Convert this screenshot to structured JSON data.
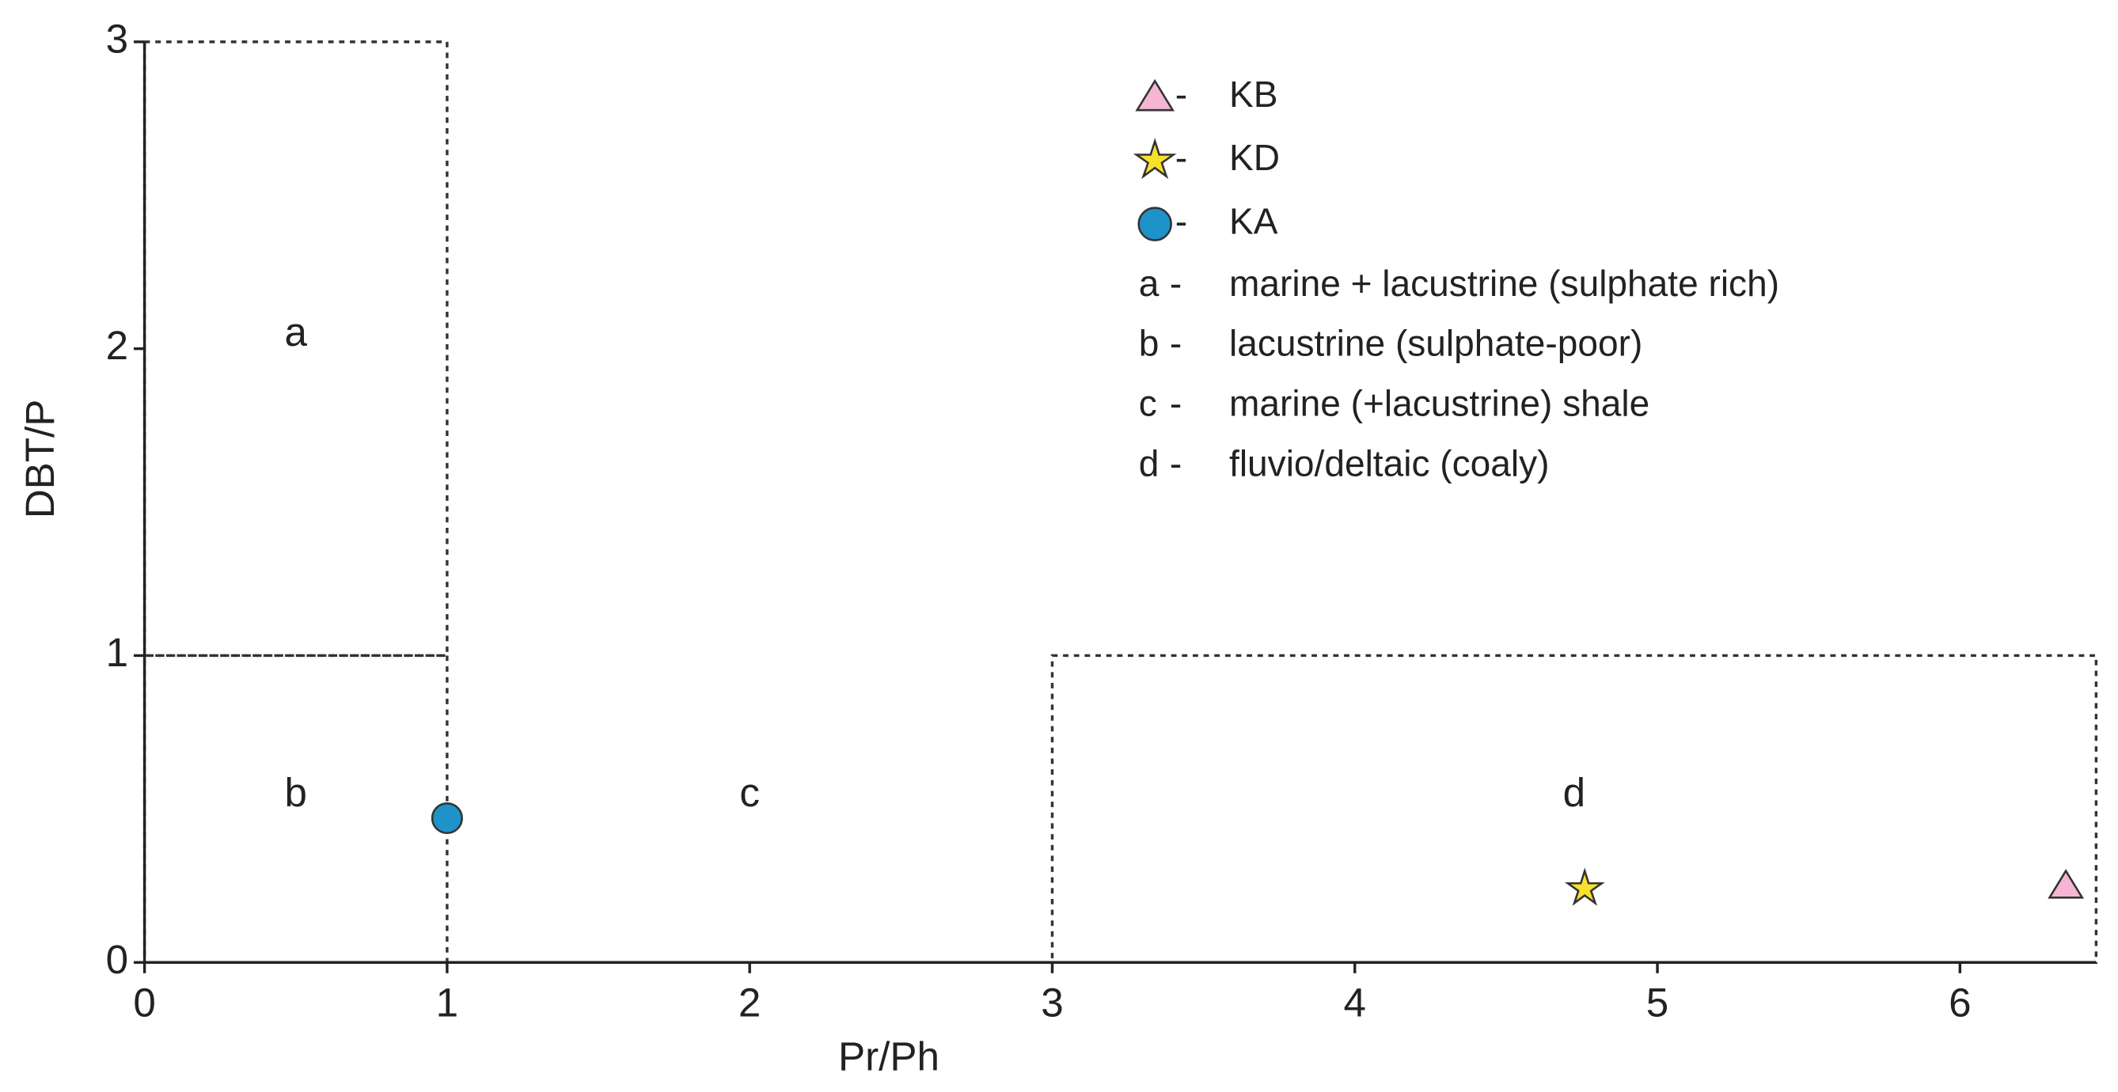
{
  "chart_data": {
    "type": "scatter",
    "x_label": "Pr/Ph",
    "y_label": "DBT/P",
    "xlim": [
      0,
      6.45
    ],
    "ylim": [
      0,
      3
    ],
    "xticks": [
      0,
      1,
      2,
      3,
      4,
      5,
      6
    ],
    "yticks": [
      0,
      1,
      2,
      3
    ],
    "legend_separator": "-",
    "series": [
      {
        "name": "KB",
        "marker": "triangle",
        "color": "#f4b6d2",
        "x": [
          6.35
        ],
        "values": [
          0.25
        ]
      },
      {
        "name": "KD",
        "marker": "star",
        "color": "#f7e12b",
        "x": [
          4.76
        ],
        "values": [
          0.24
        ]
      },
      {
        "name": "KA",
        "marker": "circle",
        "color": "#1d93c9",
        "x": [
          1.0
        ],
        "values": [
          0.47
        ]
      }
    ],
    "zones": [
      {
        "label": "a",
        "description": "marine + lacustrine (sulphate rich)",
        "x": [
          0,
          1
        ],
        "y": [
          1,
          3
        ],
        "outline": true
      },
      {
        "label": "b",
        "description": "lacustrine (sulphate-poor)",
        "x": [
          0,
          1
        ],
        "y": [
          0,
          1
        ],
        "outline": true
      },
      {
        "label": "c",
        "description": "marine (+lacustrine) shale",
        "x": [
          1,
          3
        ],
        "y": [
          0,
          1
        ],
        "outline": false
      },
      {
        "label": "d",
        "description": "fluvio/deltaic (coaly)",
        "x": [
          3,
          6.45
        ],
        "y": [
          0,
          1
        ],
        "outline": true
      }
    ]
  }
}
